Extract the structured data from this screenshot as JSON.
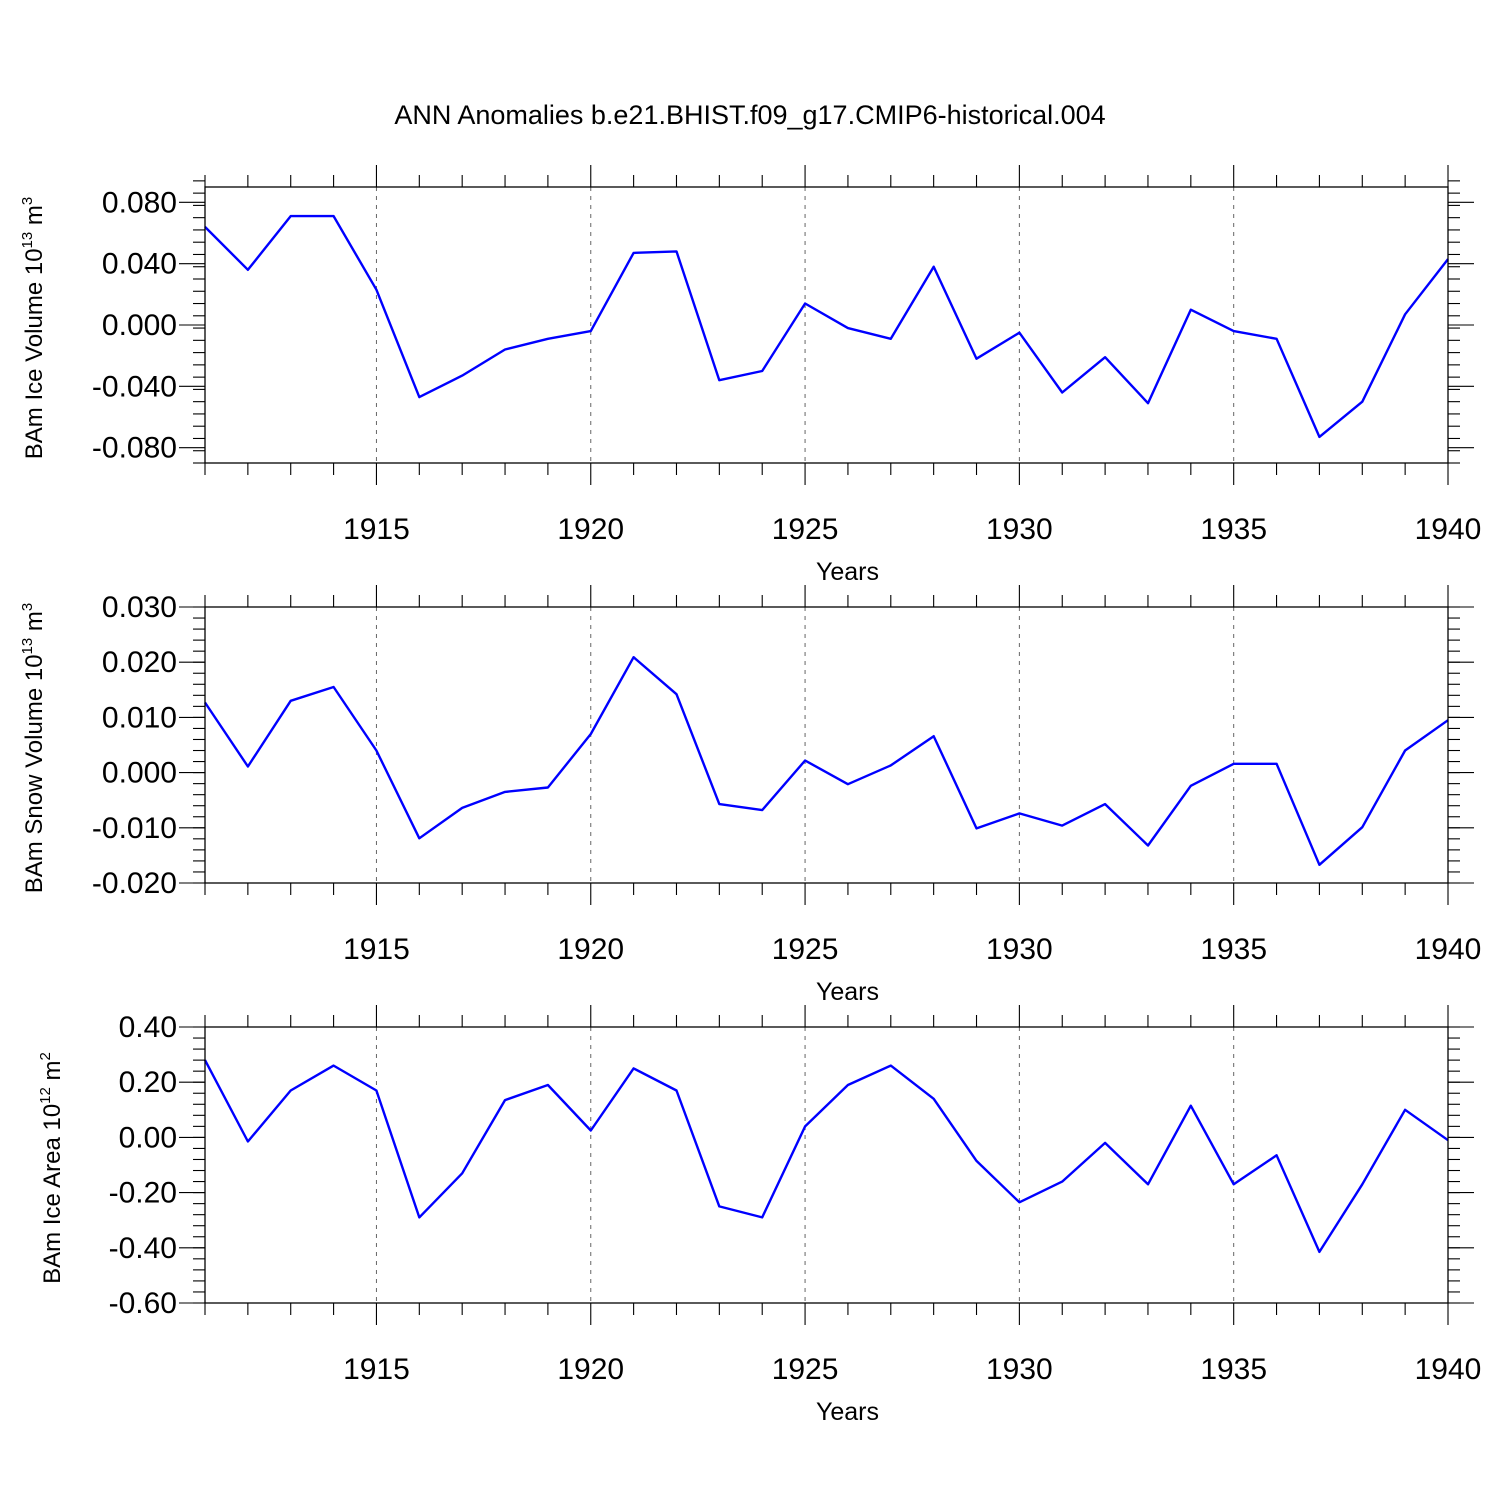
{
  "title": "ANN Anomalies b.e21.BHIST.f09_g17.CMIP6-historical.004",
  "colors": {
    "line": "#0000ff",
    "frame": "#000000",
    "grid": "#666666"
  },
  "chart_data": [
    {
      "type": "line",
      "xlabel": "Years",
      "ylabel": {
        "main": "BAm Ice Volume 10",
        "exp": "13",
        "unit": " m",
        "unit_exp": "3"
      },
      "xlim": [
        1911,
        1940
      ],
      "ylim": [
        -0.09,
        0.09
      ],
      "xticks": [
        1915,
        1920,
        1925,
        1930,
        1935,
        1940
      ],
      "yticks": [
        -0.08,
        -0.04,
        0.0,
        0.04,
        0.08
      ],
      "yticklabels": [
        "-0.080",
        "-0.040",
        "0.000",
        "0.040",
        "0.080"
      ],
      "yminor_step": 0.008,
      "grid": "vertical-dashed",
      "x": [
        1911,
        1912,
        1913,
        1914,
        1915,
        1916,
        1917,
        1918,
        1919,
        1920,
        1921,
        1922,
        1923,
        1924,
        1925,
        1926,
        1927,
        1928,
        1929,
        1930,
        1931,
        1932,
        1933,
        1934,
        1935,
        1936,
        1937,
        1938,
        1939,
        1940
      ],
      "values": [
        0.064,
        0.036,
        0.071,
        0.071,
        0.023,
        -0.047,
        -0.033,
        -0.016,
        -0.009,
        -0.004,
        0.047,
        0.048,
        -0.036,
        -0.03,
        0.014,
        -0.002,
        -0.009,
        0.038,
        -0.022,
        -0.005,
        -0.044,
        -0.021,
        -0.051,
        0.01,
        -0.004,
        -0.009,
        -0.073,
        -0.05,
        0.007,
        0.043
      ]
    },
    {
      "type": "line",
      "xlabel": "Years",
      "ylabel": {
        "main": "BAm Snow Volume 10",
        "exp": "13",
        "unit": " m",
        "unit_exp": "3"
      },
      "xlim": [
        1911,
        1940
      ],
      "ylim": [
        -0.02,
        0.03
      ],
      "xticks": [
        1915,
        1920,
        1925,
        1930,
        1935,
        1940
      ],
      "yticks": [
        -0.02,
        -0.01,
        0.0,
        0.01,
        0.02,
        0.03
      ],
      "yticklabels": [
        "-0.020",
        "-0.010",
        "0.000",
        "0.010",
        "0.020",
        "0.030"
      ],
      "yminor_step": 0.002,
      "grid": "vertical-dashed",
      "x": [
        1911,
        1912,
        1913,
        1914,
        1915,
        1916,
        1917,
        1918,
        1919,
        1920,
        1921,
        1922,
        1923,
        1924,
        1925,
        1926,
        1927,
        1928,
        1929,
        1930,
        1931,
        1932,
        1933,
        1934,
        1935,
        1936,
        1937,
        1938,
        1939,
        1940
      ],
      "values": [
        0.0127,
        0.0011,
        0.013,
        0.0155,
        0.004,
        -0.0119,
        -0.0064,
        -0.0035,
        -0.0027,
        0.007,
        0.0209,
        0.0142,
        -0.0057,
        -0.0068,
        0.0022,
        -0.0021,
        0.0013,
        0.0066,
        -0.0101,
        -0.0074,
        -0.0096,
        -0.0057,
        -0.0132,
        -0.0024,
        0.0016,
        0.0016,
        -0.0167,
        -0.0099,
        0.004,
        0.0095
      ]
    },
    {
      "type": "line",
      "xlabel": "Years",
      "ylabel": {
        "main": "BAm Ice Area 10",
        "exp": "12",
        "unit": " m",
        "unit_exp": "2"
      },
      "xlim": [
        1911,
        1940
      ],
      "ylim": [
        -0.6,
        0.4
      ],
      "xticks": [
        1915,
        1920,
        1925,
        1930,
        1935,
        1940
      ],
      "yticks": [
        -0.6,
        -0.4,
        -0.2,
        0.0,
        0.2,
        0.4
      ],
      "yticklabels": [
        "-0.60",
        "-0.40",
        "-0.20",
        "0.00",
        "0.20",
        "0.40"
      ],
      "yminor_step": 0.04,
      "grid": "vertical-dashed",
      "x": [
        1911,
        1912,
        1913,
        1914,
        1915,
        1916,
        1917,
        1918,
        1919,
        1920,
        1921,
        1922,
        1923,
        1924,
        1925,
        1926,
        1927,
        1928,
        1929,
        1930,
        1931,
        1932,
        1933,
        1934,
        1935,
        1936,
        1937,
        1938,
        1939,
        1940
      ],
      "values": [
        0.28,
        -0.015,
        0.17,
        0.26,
        0.17,
        -0.29,
        -0.13,
        0.135,
        0.19,
        0.025,
        0.25,
        0.17,
        -0.25,
        -0.29,
        0.04,
        0.19,
        0.26,
        0.14,
        -0.085,
        -0.235,
        -0.16,
        -0.02,
        -0.17,
        0.115,
        -0.17,
        -0.065,
        -0.415,
        -0.17,
        0.1,
        -0.01
      ]
    }
  ]
}
